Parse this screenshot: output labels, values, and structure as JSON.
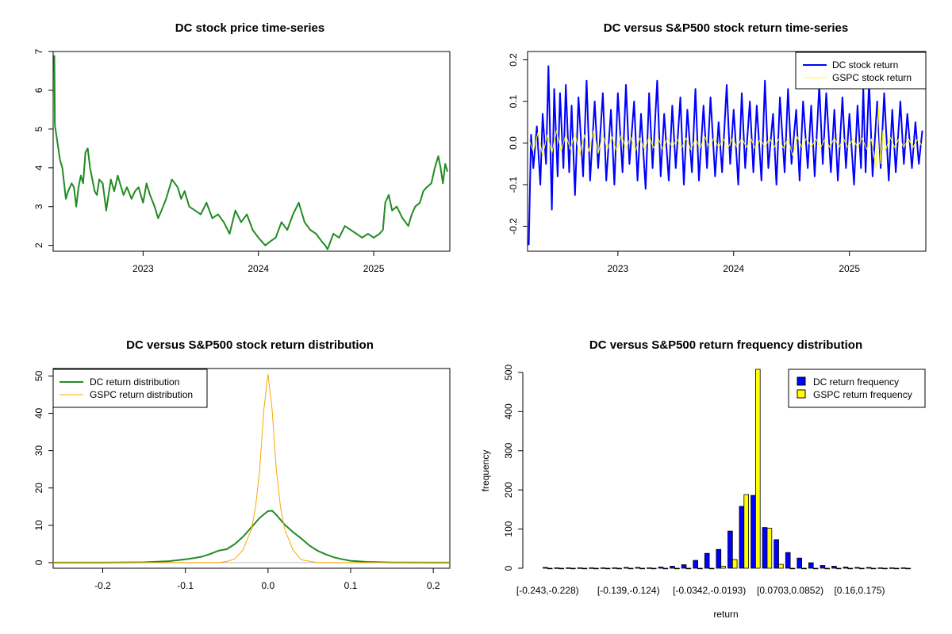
{
  "chart_data": [
    {
      "id": "price",
      "type": "line",
      "title": "DC stock price time-series",
      "xlabel": "",
      "ylabel": "",
      "xlim": [
        2022.22,
        2025.66
      ],
      "ylim": [
        1.85,
        7.0
      ],
      "x_ticks": [
        2023,
        2024,
        2025
      ],
      "x_tick_labels": [
        "2023",
        "2024",
        "2025"
      ],
      "y_ticks": [
        2,
        3,
        4,
        5,
        6,
        7
      ],
      "y_tick_labels": [
        "2",
        "3",
        "4",
        "5",
        "6",
        "7"
      ],
      "grid": false,
      "series": [
        {
          "color": "#228B22",
          "x": [
            2022.23,
            2022.235,
            2022.24,
            2022.25,
            2022.26,
            2022.28,
            2022.3,
            2022.33,
            2022.35,
            2022.38,
            2022.4,
            2022.42,
            2022.44,
            2022.46,
            2022.48,
            2022.5,
            2022.52,
            2022.54,
            2022.56,
            2022.58,
            2022.6,
            2022.62,
            2022.65,
            2022.68,
            2022.7,
            2022.72,
            2022.75,
            2022.78,
            2022.8,
            2022.83,
            2022.86,
            2022.9,
            2022.93,
            2022.96,
            2023.0,
            2023.03,
            2023.06,
            2023.1,
            2023.13,
            2023.16,
            2023.2,
            2023.25,
            2023.3,
            2023.33,
            2023.36,
            2023.4,
            2023.45,
            2023.5,
            2023.55,
            2023.6,
            2023.65,
            2023.7,
            2023.75,
            2023.8,
            2023.85,
            2023.9,
            2023.95,
            2024.0,
            2024.03,
            2024.06,
            2024.1,
            2024.15,
            2024.2,
            2024.25,
            2024.3,
            2024.35,
            2024.4,
            2024.45,
            2024.5,
            2024.55,
            2024.58,
            2024.6,
            2024.65,
            2024.7,
            2024.75,
            2024.8,
            2024.85,
            2024.9,
            2024.95,
            2025.0,
            2025.05,
            2025.08,
            2025.1,
            2025.13,
            2025.16,
            2025.2,
            2025.25,
            2025.3,
            2025.33,
            2025.36,
            2025.4,
            2025.43,
            2025.46,
            2025.5,
            2025.53,
            2025.56,
            2025.58,
            2025.6,
            2025.62,
            2025.64
          ],
          "y": [
            6.9,
            5.1,
            5.0,
            4.8,
            4.6,
            4.2,
            4.0,
            3.2,
            3.4,
            3.6,
            3.5,
            3.0,
            3.5,
            3.8,
            3.6,
            4.4,
            4.5,
            4.0,
            3.7,
            3.4,
            3.3,
            3.7,
            3.6,
            2.9,
            3.3,
            3.7,
            3.4,
            3.8,
            3.6,
            3.3,
            3.5,
            3.2,
            3.4,
            3.5,
            3.1,
            3.6,
            3.3,
            3.0,
            2.7,
            2.9,
            3.2,
            3.7,
            3.5,
            3.2,
            3.4,
            3.0,
            2.9,
            2.8,
            3.1,
            2.7,
            2.8,
            2.6,
            2.3,
            2.9,
            2.6,
            2.8,
            2.4,
            2.2,
            2.1,
            2.0,
            2.1,
            2.2,
            2.6,
            2.4,
            2.8,
            3.1,
            2.6,
            2.4,
            2.3,
            2.1,
            2.0,
            1.9,
            2.3,
            2.2,
            2.5,
            2.4,
            2.3,
            2.2,
            2.3,
            2.2,
            2.3,
            2.4,
            3.1,
            3.3,
            2.9,
            3.0,
            2.7,
            2.5,
            2.8,
            3.0,
            3.1,
            3.4,
            3.5,
            3.6,
            4.0,
            4.3,
            4.0,
            3.6,
            4.1,
            3.9
          ]
        }
      ]
    },
    {
      "id": "returns_ts",
      "type": "line",
      "title": "DC versus S&P500 stock return time-series",
      "xlabel": "",
      "ylabel": "",
      "xlim": [
        2022.22,
        2025.66
      ],
      "ylim": [
        -0.26,
        0.22
      ],
      "x_ticks": [
        2023,
        2024,
        2025
      ],
      "x_tick_labels": [
        "2023",
        "2024",
        "2025"
      ],
      "y_ticks": [
        -0.2,
        -0.1,
        0.0,
        0.1,
        0.2
      ],
      "y_tick_labels": [
        "-0.2",
        "-0.1",
        "0.0",
        "0.1",
        "0.2"
      ],
      "grid": false,
      "legend_position": "top-right",
      "series": [
        {
          "name": "DC stock return",
          "color": "#0000FF",
          "x": [
            2022.23,
            2022.25,
            2022.27,
            2022.3,
            2022.33,
            2022.35,
            2022.38,
            2022.4,
            2022.43,
            2022.45,
            2022.48,
            2022.5,
            2022.53,
            2022.55,
            2022.58,
            2022.6,
            2022.63,
            2022.66,
            2022.7,
            2022.73,
            2022.76,
            2022.8,
            2022.83,
            2022.87,
            2022.9,
            2022.94,
            2022.97,
            2023.0,
            2023.04,
            2023.07,
            2023.1,
            2023.14,
            2023.17,
            2023.2,
            2023.24,
            2023.27,
            2023.3,
            2023.34,
            2023.37,
            2023.4,
            2023.44,
            2023.47,
            2023.5,
            2023.54,
            2023.57,
            2023.6,
            2023.64,
            2023.67,
            2023.7,
            2023.74,
            2023.77,
            2023.8,
            2023.84,
            2023.87,
            2023.9,
            2023.94,
            2023.97,
            2024.0,
            2024.04,
            2024.07,
            2024.1,
            2024.14,
            2024.17,
            2024.2,
            2024.24,
            2024.27,
            2024.3,
            2024.34,
            2024.37,
            2024.4,
            2024.44,
            2024.47,
            2024.5,
            2024.54,
            2024.57,
            2024.6,
            2024.64,
            2024.67,
            2024.7,
            2024.74,
            2024.77,
            2024.8,
            2024.84,
            2024.87,
            2024.9,
            2024.94,
            2024.97,
            2025.0,
            2025.04,
            2025.07,
            2025.1,
            2025.12,
            2025.14,
            2025.17,
            2025.2,
            2025.24,
            2025.27,
            2025.3,
            2025.34,
            2025.37,
            2025.4,
            2025.44,
            2025.47,
            2025.5,
            2025.54,
            2025.57,
            2025.6,
            2025.63
          ],
          "y": [
            -0.245,
            0.02,
            -0.06,
            0.04,
            -0.1,
            0.07,
            -0.05,
            0.185,
            -0.16,
            0.13,
            -0.08,
            0.12,
            -0.06,
            0.14,
            -0.07,
            0.09,
            -0.125,
            0.11,
            -0.08,
            0.15,
            -0.09,
            0.1,
            -0.06,
            0.12,
            -0.09,
            0.08,
            -0.1,
            0.12,
            -0.07,
            0.14,
            -0.05,
            0.1,
            -0.09,
            0.07,
            -0.11,
            0.12,
            -0.06,
            0.15,
            -0.08,
            0.07,
            -0.09,
            0.09,
            -0.06,
            0.11,
            -0.1,
            0.08,
            -0.07,
            0.13,
            -0.09,
            0.09,
            -0.06,
            0.11,
            -0.08,
            0.05,
            -0.07,
            0.14,
            -0.05,
            0.08,
            -0.1,
            0.12,
            -0.06,
            0.1,
            -0.07,
            0.09,
            -0.09,
            0.15,
            -0.06,
            0.07,
            -0.1,
            0.11,
            -0.07,
            0.13,
            -0.05,
            0.08,
            -0.09,
            0.1,
            -0.06,
            0.09,
            -0.08,
            0.14,
            -0.05,
            0.12,
            -0.07,
            0.08,
            -0.09,
            0.11,
            -0.06,
            0.07,
            -0.1,
            0.09,
            -0.06,
            0.13,
            -0.07,
            0.15,
            -0.08,
            0.1,
            -0.06,
            0.12,
            -0.09,
            0.08,
            -0.07,
            0.1,
            -0.05,
            0.07,
            -0.06,
            0.05,
            -0.05,
            0.03
          ]
        },
        {
          "name": "GSPC stock return",
          "color": "#FFFF00",
          "x": [
            2022.23,
            2022.27,
            2022.31,
            2022.35,
            2022.39,
            2022.43,
            2022.47,
            2022.51,
            2022.55,
            2022.59,
            2022.63,
            2022.67,
            2022.71,
            2022.75,
            2022.79,
            2022.83,
            2022.87,
            2022.91,
            2022.95,
            2022.99,
            2023.03,
            2023.07,
            2023.11,
            2023.15,
            2023.19,
            2023.23,
            2023.27,
            2023.31,
            2023.35,
            2023.39,
            2023.43,
            2023.47,
            2023.51,
            2023.55,
            2023.59,
            2023.63,
            2023.67,
            2023.71,
            2023.75,
            2023.79,
            2023.83,
            2023.87,
            2023.91,
            2023.95,
            2023.99,
            2024.03,
            2024.07,
            2024.11,
            2024.15,
            2024.19,
            2024.23,
            2024.27,
            2024.31,
            2024.35,
            2024.39,
            2024.43,
            2024.47,
            2024.51,
            2024.55,
            2024.59,
            2024.63,
            2024.67,
            2024.71,
            2024.75,
            2024.79,
            2024.83,
            2024.87,
            2024.91,
            2024.95,
            2024.99,
            2025.03,
            2025.07,
            2025.11,
            2025.15,
            2025.19,
            2025.23,
            2025.25,
            2025.27,
            2025.29,
            2025.31,
            2025.35,
            2025.39,
            2025.43,
            2025.47,
            2025.51,
            2025.55,
            2025.59,
            2025.63
          ],
          "y": [
            0.01,
            -0.02,
            0.025,
            -0.03,
            0.02,
            -0.025,
            0.03,
            -0.02,
            0.02,
            -0.015,
            0.025,
            -0.03,
            0.02,
            -0.02,
            0.03,
            -0.025,
            0.02,
            -0.015,
            0.015,
            -0.02,
            0.02,
            -0.015,
            0.015,
            -0.02,
            0.012,
            -0.015,
            0.015,
            -0.012,
            0.01,
            -0.015,
            0.012,
            -0.01,
            0.01,
            -0.012,
            0.012,
            -0.015,
            0.01,
            -0.012,
            0.015,
            -0.01,
            0.012,
            -0.01,
            0.01,
            -0.012,
            0.01,
            -0.01,
            0.012,
            -0.01,
            0.01,
            -0.015,
            0.01,
            -0.01,
            0.012,
            -0.01,
            0.01,
            -0.012,
            0.01,
            -0.03,
            0.015,
            -0.01,
            0.012,
            -0.01,
            0.01,
            -0.012,
            0.01,
            -0.01,
            0.012,
            -0.01,
            0.01,
            -0.012,
            0.01,
            -0.01,
            0.012,
            -0.015,
            0.01,
            -0.06,
            0.09,
            -0.05,
            0.03,
            -0.02,
            0.015,
            -0.01,
            0.012,
            -0.01,
            0.01,
            -0.01,
            0.01,
            -0.008
          ]
        }
      ]
    },
    {
      "id": "density",
      "type": "line",
      "title": "DC versus S&P500 stock return distribution",
      "xlabel": "",
      "ylabel": "",
      "xlim": [
        -0.26,
        0.22
      ],
      "ylim": [
        -1.5,
        52
      ],
      "x_ticks": [
        -0.2,
        -0.1,
        0.0,
        0.1,
        0.2
      ],
      "x_tick_labels": [
        "-0.2",
        "-0.1",
        "0.0",
        "0.1",
        "0.2"
      ],
      "y_ticks": [
        0,
        10,
        20,
        30,
        40,
        50
      ],
      "y_tick_labels": [
        "0",
        "10",
        "20",
        "30",
        "40",
        "50"
      ],
      "grid": false,
      "baseline_color": "#BEBEBE",
      "legend_position": "top-left",
      "series": [
        {
          "name": "DC return distribution",
          "color": "#228B22",
          "x": [
            -0.26,
            -0.2,
            -0.15,
            -0.12,
            -0.1,
            -0.09,
            -0.08,
            -0.07,
            -0.06,
            -0.05,
            -0.04,
            -0.03,
            -0.02,
            -0.01,
            0.0,
            0.005,
            0.01,
            0.02,
            0.03,
            0.04,
            0.05,
            0.06,
            0.07,
            0.08,
            0.09,
            0.1,
            0.12,
            0.15,
            0.2,
            0.22
          ],
          "y": [
            0,
            0,
            0.1,
            0.4,
            0.9,
            1.2,
            1.6,
            2.3,
            3.2,
            3.6,
            5.0,
            7.0,
            9.5,
            12.0,
            13.8,
            13.9,
            12.8,
            10.2,
            8.2,
            6.5,
            4.6,
            3.2,
            2.2,
            1.4,
            0.9,
            0.5,
            0.2,
            0.05,
            0,
            0
          ]
        },
        {
          "name": "GSPC return distribution",
          "color": "#FFA500",
          "x": [
            -0.26,
            -0.06,
            -0.05,
            -0.04,
            -0.03,
            -0.02,
            -0.015,
            -0.01,
            -0.005,
            0.0,
            0.005,
            0.01,
            0.015,
            0.02,
            0.03,
            0.04,
            0.05,
            0.06,
            0.22
          ],
          "y": [
            0,
            0,
            0.3,
            1.0,
            3.5,
            9.0,
            15.0,
            25.0,
            41.0,
            50.5,
            41.0,
            25.0,
            15.0,
            9.0,
            3.5,
            0.8,
            0.4,
            0,
            0
          ]
        }
      ]
    },
    {
      "id": "frequency",
      "type": "bar",
      "title": "DC versus S&P500 return frequency distribution",
      "xlabel": "return",
      "ylabel": "frequency",
      "ylim": [
        0,
        510
      ],
      "y_ticks": [
        0,
        100,
        200,
        300,
        400,
        500
      ],
      "y_tick_labels": [
        "0",
        "100",
        "200",
        "300",
        "400",
        "500"
      ],
      "x_tick_labels": [
        "[-0.243,-0.228)",
        "[-0.139,-0.124)",
        "[-0.0342,-0.0193)",
        "[0.0703,0.0852)",
        "[0.16,0.175)"
      ],
      "x_tick_label_bins": [
        0,
        7,
        14,
        21,
        27
      ],
      "grid": false,
      "legend_position": "top-right",
      "bin_count": 32,
      "series": [
        {
          "name": "DC return frequency",
          "color": "#0000FF",
          "values": [
            2,
            1,
            1,
            1,
            1,
            1,
            1,
            2,
            2,
            1,
            3,
            5,
            9,
            20,
            38,
            48,
            95,
            158,
            186,
            104,
            73,
            40,
            26,
            14,
            7,
            5,
            3,
            2,
            2,
            1,
            1,
            1
          ]
        },
        {
          "name": "GSPC return frequency",
          "color": "#FFFF00",
          "values": [
            0,
            0,
            0,
            0,
            0,
            0,
            0,
            0,
            0,
            0,
            0,
            0,
            0,
            0,
            0,
            5,
            22,
            188,
            508,
            102,
            10,
            0,
            0,
            0,
            0,
            0,
            0,
            0,
            0,
            0,
            0,
            0
          ]
        }
      ]
    }
  ]
}
